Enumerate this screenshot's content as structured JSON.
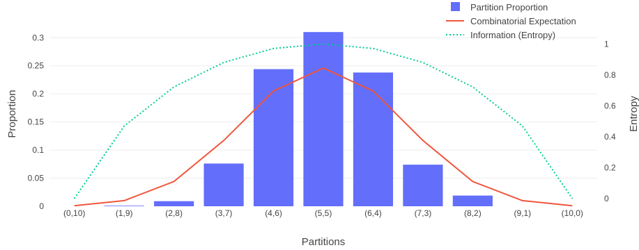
{
  "chart_data": {
    "type": "bar",
    "title": "",
    "xlabel": "Partitions",
    "ylabel": "Proportion",
    "y2label": "Entropy",
    "categories": [
      "(0,10)",
      "(1,9)",
      "(2,8)",
      "(3,7)",
      "(4,6)",
      "(5,5)",
      "(6,4)",
      "(7,3)",
      "(8,2)",
      "(9,1)",
      "(10,0)"
    ],
    "ylim": [
      0,
      0.33
    ],
    "y2lim": [
      -0.05,
      1.15
    ],
    "yticks": [
      0,
      0.05,
      0.1,
      0.15,
      0.2,
      0.25,
      0.3
    ],
    "ytick_labels": [
      "0",
      "0.05",
      "0.1",
      "0.15",
      "0.2",
      "0.25",
      "0.3"
    ],
    "y2ticks": [
      0,
      0.2,
      0.4,
      0.6,
      0.8,
      1
    ],
    "y2tick_labels": [
      "0",
      "0.2",
      "0.4",
      "0.6",
      "0.8",
      "1"
    ],
    "grid": true,
    "legend_position": "top-right",
    "series": [
      {
        "name": "Partition Proportion",
        "kind": "bar",
        "axis": "y",
        "color": "#636efa",
        "values": [
          0,
          0.001,
          0.009,
          0.076,
          0.244,
          0.31,
          0.238,
          0.074,
          0.019,
          0,
          0
        ]
      },
      {
        "name": "Combinatorial Expectation",
        "kind": "line",
        "axis": "y",
        "color": "#ef553b",
        "values": [
          0.001,
          0.01,
          0.044,
          0.117,
          0.205,
          0.246,
          0.205,
          0.117,
          0.044,
          0.01,
          0.001
        ]
      },
      {
        "name": "Information (Entropy)",
        "kind": "dotted-line",
        "axis": "y2",
        "color": "#00cc96",
        "values": [
          0,
          0.469,
          0.722,
          0.881,
          0.971,
          1,
          0.971,
          0.881,
          0.722,
          0.469,
          0
        ]
      }
    ]
  }
}
